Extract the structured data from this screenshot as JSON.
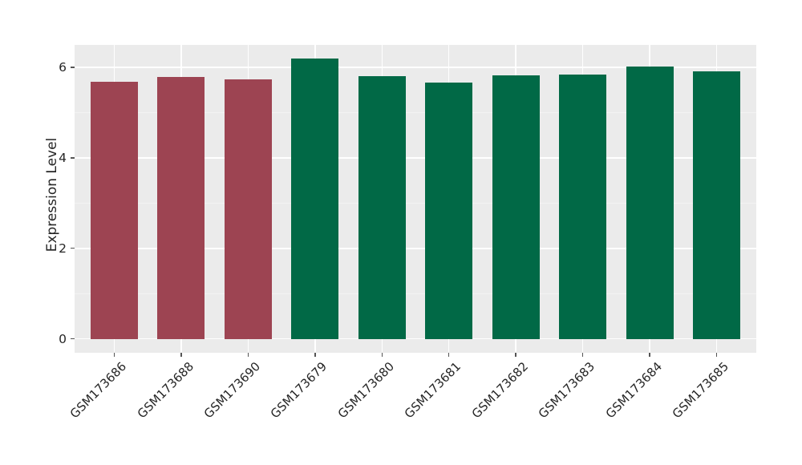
{
  "chart_data": {
    "type": "bar",
    "title": "",
    "xlabel": "",
    "ylabel": "Expression Level",
    "categories": [
      "GSM173686",
      "GSM173688",
      "GSM173690",
      "GSM173679",
      "GSM173680",
      "GSM173681",
      "GSM173682",
      "GSM173683",
      "GSM173684",
      "GSM173685"
    ],
    "values": [
      5.69,
      5.79,
      5.73,
      6.19,
      5.81,
      5.66,
      5.82,
      5.84,
      6.02,
      5.91
    ],
    "bar_colors": [
      "#9D4452",
      "#9D4452",
      "#9D4452",
      "#016946",
      "#016946",
      "#016946",
      "#016946",
      "#016946",
      "#016946",
      "#016946"
    ],
    "yticks": [
      0,
      2,
      4,
      6
    ],
    "minor_yticks": [
      1,
      3,
      5
    ],
    "ylim": [
      -0.31,
      6.5
    ],
    "grid": true,
    "legend": false,
    "panel_bg": "#EBEBEB",
    "figure_bg": "#FFFFFF",
    "major_grid_color": "#FFFFFF",
    "minor_grid_color": "#F3F3F3",
    "tick_color": "#555555",
    "text_color": "#262626"
  }
}
